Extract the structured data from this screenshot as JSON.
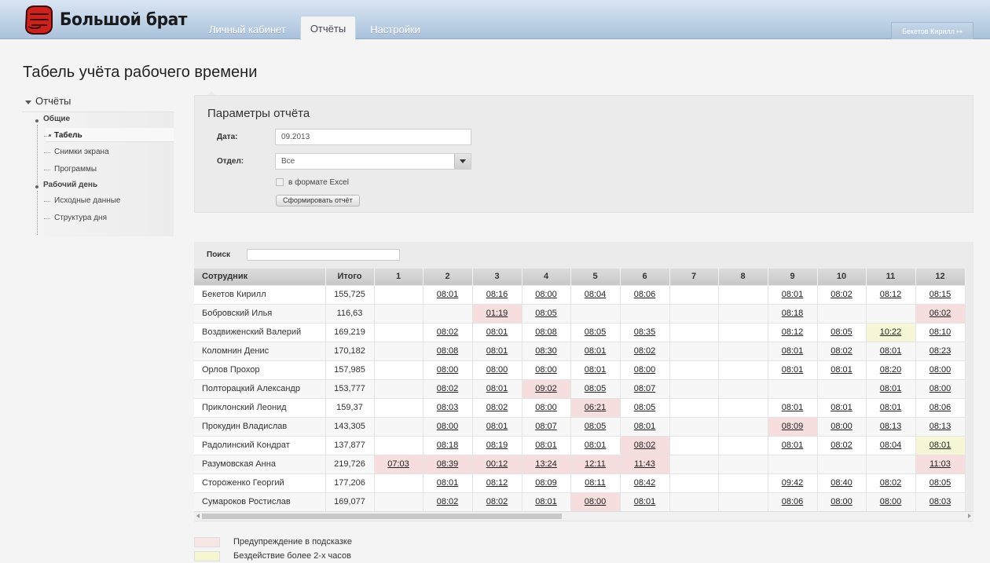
{
  "app": {
    "logo_text": "Большой брат",
    "nav": [
      {
        "label": "Личный кабинет",
        "active": false
      },
      {
        "label": "Отчёты",
        "active": true
      },
      {
        "label": "Настройки",
        "active": false
      }
    ],
    "user_button": "Бекетов Кирилл ↦"
  },
  "page_title": "Табель учёта рабочего времени",
  "sidebar": {
    "root": "Отчёты",
    "items": [
      {
        "label": "Общие",
        "type": "group"
      },
      {
        "label": "Табель",
        "type": "active"
      },
      {
        "label": "Снимки экрана",
        "type": "leaf"
      },
      {
        "label": "Программы",
        "type": "leaf"
      },
      {
        "label": "Рабочий день",
        "type": "group"
      },
      {
        "label": "Исходные данные",
        "type": "leaf"
      },
      {
        "label": "Структура дня",
        "type": "leaf"
      }
    ]
  },
  "params": {
    "title": "Параметры отчёта",
    "date_label": "Дата:",
    "date_value": "09.2013",
    "dept_label": "Отдел:",
    "dept_value": "Все",
    "excel_label": "в формате Excel",
    "submit_label": "Сформировать отчёт"
  },
  "search": {
    "label": "Поиск",
    "value": ""
  },
  "table": {
    "headers": [
      "Сотрудник",
      "Итого",
      "1",
      "2",
      "3",
      "4",
      "5",
      "6",
      "7",
      "8",
      "9",
      "10",
      "11",
      "12"
    ],
    "rows": [
      {
        "name": "Бекетов Кирилл",
        "total": "155,725",
        "days": [
          "",
          "08:01",
          "08:16",
          "08:00",
          "08:04",
          "08:06",
          "",
          "",
          "08:01",
          "08:02",
          "08:12",
          "08:15"
        ],
        "warn": [],
        "idle": []
      },
      {
        "name": "Бобровский Илья",
        "total": "116,63",
        "days": [
          "",
          "",
          "01:19",
          "08:05",
          "",
          "",
          "",
          "",
          "08:18",
          "",
          "",
          "06:02"
        ],
        "warn": [
          2,
          11
        ],
        "idle": []
      },
      {
        "name": "Воздвиженский Валерий",
        "total": "169,219",
        "days": [
          "",
          "08:02",
          "08:01",
          "08:08",
          "08:05",
          "08:35",
          "",
          "",
          "08:12",
          "08:05",
          "10:22",
          "08:10"
        ],
        "warn": [],
        "idle": [
          10
        ]
      },
      {
        "name": "Коломнин Денис",
        "total": "170,182",
        "days": [
          "",
          "08:08",
          "08:01",
          "08:30",
          "08:01",
          "08:02",
          "",
          "",
          "08:01",
          "08:02",
          "08:01",
          "08:23"
        ],
        "warn": [],
        "idle": []
      },
      {
        "name": "Орлов Прохор",
        "total": "157,985",
        "days": [
          "",
          "08:00",
          "08:00",
          "08:00",
          "08:01",
          "08:00",
          "",
          "",
          "08:01",
          "08:01",
          "08:20",
          "08:00"
        ],
        "warn": [],
        "idle": []
      },
      {
        "name": "Полторацкий Александр",
        "total": "153,777",
        "days": [
          "",
          "08:02",
          "08:01",
          "09:02",
          "08:05",
          "08:07",
          "",
          "",
          "",
          "",
          "08:01",
          "08:00"
        ],
        "warn": [
          3
        ],
        "idle": []
      },
      {
        "name": "Приклонский Леонид",
        "total": "159,37",
        "days": [
          "",
          "08:03",
          "08:02",
          "08:00",
          "06:21",
          "08:05",
          "",
          "",
          "08:01",
          "08:01",
          "08:01",
          "08:06"
        ],
        "warn": [
          4
        ],
        "idle": []
      },
      {
        "name": "Прокудин Владислав",
        "total": "143,305",
        "days": [
          "",
          "08:00",
          "08:01",
          "08:07",
          "08:05",
          "08:01",
          "",
          "",
          "08:09",
          "08:00",
          "08:13",
          "08:13"
        ],
        "warn": [
          8
        ],
        "idle": []
      },
      {
        "name": "Радолинский Кондрат",
        "total": "137,877",
        "days": [
          "",
          "08:18",
          "08:19",
          "08:01",
          "08:01",
          "08:02",
          "",
          "",
          "08:01",
          "08:02",
          "08:04",
          "08:01"
        ],
        "warn": [
          5
        ],
        "idle": [
          11
        ]
      },
      {
        "name": "Разумовская Анна",
        "total": "219,726",
        "days": [
          "07:03",
          "08:39",
          "00:12",
          "13:24",
          "12:11",
          "11:43",
          "",
          "",
          "",
          "",
          "",
          "11:03"
        ],
        "warn": [
          0,
          1,
          2,
          3,
          4,
          5,
          11
        ],
        "idle": []
      },
      {
        "name": "Стороженко Георгий",
        "total": "177,206",
        "days": [
          "",
          "08:01",
          "08:12",
          "08:09",
          "08:11",
          "08:42",
          "",
          "",
          "09:42",
          "08:40",
          "08:02",
          "08:05"
        ],
        "warn": [],
        "idle": []
      },
      {
        "name": "Сумароков Ростислав",
        "total": "169,077",
        "days": [
          "",
          "08:02",
          "08:02",
          "08:01",
          "08:00",
          "08:01",
          "",
          "",
          "08:06",
          "08:00",
          "08:00",
          "08:03"
        ],
        "warn": [
          4
        ],
        "idle": []
      }
    ]
  },
  "legend": [
    {
      "label": "Предупреждение в подсказке",
      "color": "#f6e6e6"
    },
    {
      "label": "Бездействие более 2-х часов",
      "color": "#f6f6d0"
    }
  ],
  "colors": {
    "warn": "#f6dede",
    "idle": "#f6f6d6",
    "header": "#b8cde2"
  }
}
